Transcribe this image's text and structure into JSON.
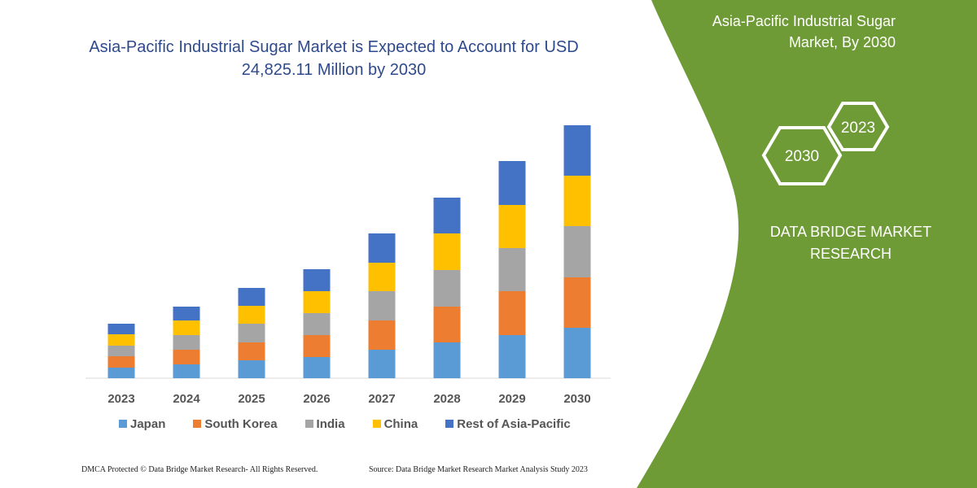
{
  "chart_data": {
    "type": "bar",
    "stacked": true,
    "title": "Asia-Pacific Industrial Sugar Market is Expected to Account for USD 24,825.11 Million by 2030",
    "categories": [
      "2023",
      "2024",
      "2025",
      "2026",
      "2027",
      "2028",
      "2029",
      "2030"
    ],
    "series": [
      {
        "name": "Japan",
        "color": "#5b9bd5",
        "values": [
          1040,
          1360,
          1760,
          2080,
          2800,
          3520,
          4240,
          4960
        ]
      },
      {
        "name": "South Korea",
        "color": "#ed7d31",
        "values": [
          1120,
          1440,
          1760,
          2160,
          2880,
          3520,
          4320,
          4960
        ]
      },
      {
        "name": "India",
        "color": "#a5a5a5",
        "values": [
          1040,
          1440,
          1840,
          2160,
          2880,
          3600,
          4240,
          5040
        ]
      },
      {
        "name": "China",
        "color": "#ffc000",
        "values": [
          1120,
          1440,
          1760,
          2160,
          2800,
          3600,
          4240,
          4960
        ]
      },
      {
        "name": "Rest of Asia-Pacific",
        "color": "#4472c4",
        "values": [
          1040,
          1360,
          1760,
          2160,
          2880,
          3520,
          4320,
          4960
        ]
      }
    ],
    "ylim": [
      0,
      25000
    ],
    "grid": false,
    "legend_position": "bottom"
  },
  "panel": {
    "title_line1": "Asia-Pacific Industrial Sugar",
    "title_line2": "Market, By 2030",
    "hex_a": "2023",
    "hex_b": "2030",
    "brand_line1": "DATA BRIDGE MARKET",
    "brand_line2": "RESEARCH",
    "color": "#6f9b37"
  },
  "footer": {
    "left": "DMCA Protected © Data Bridge Market Research-  All Rights Reserved.",
    "right": "Source: Data Bridge Market Research  Market Analysis Study 2023"
  }
}
